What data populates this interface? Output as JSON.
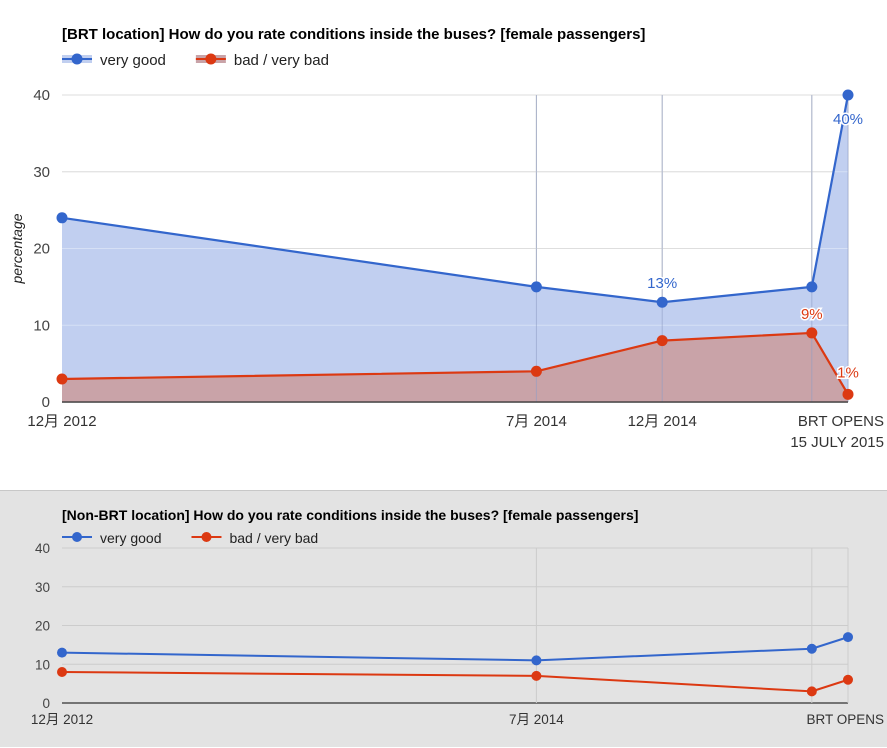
{
  "chart_data": [
    {
      "type": "area",
      "title": "[BRT location] How do you rate conditions inside the buses? [female passengers]",
      "xlabel": "",
      "ylabel": "percentage",
      "ylim": [
        0,
        40
      ],
      "yticks": [
        "0",
        "10",
        "20",
        "30",
        "40"
      ],
      "x": [
        "2012-12",
        "2014-07",
        "2014-12",
        "2015-06",
        "2015-07-15"
      ],
      "xtick_labels": [
        {
          "x": "2012-12",
          "lines": [
            "12月 2012"
          ]
        },
        {
          "x": "2014-07",
          "lines": [
            "7月 2014"
          ]
        },
        {
          "x": "2014-12",
          "lines": [
            "12月 2014"
          ]
        },
        {
          "x": "2015-07-15",
          "lines": [
            "BRT OPENS",
            "15 JULY 2015"
          ]
        }
      ],
      "series": [
        {
          "name": "very good",
          "color": "#3366cc",
          "fill": "#c1cff0",
          "values": [
            24,
            15,
            13,
            15,
            40
          ],
          "data_labels": [
            null,
            null,
            "13%",
            null,
            "40%"
          ]
        },
        {
          "name": "bad / very bad",
          "color": "#dc3912",
          "fill": "#c9a3a8",
          "values": [
            3,
            4,
            8,
            9,
            1
          ],
          "data_labels": [
            null,
            null,
            null,
            "9%",
            "1%"
          ]
        }
      ],
      "legend_position": "top-left",
      "grid": true
    },
    {
      "type": "line",
      "title": "[Non-BRT location] How do you rate conditions inside the buses? [female passengers]",
      "xlabel": "",
      "ylabel": "",
      "ylim": [
        0,
        40
      ],
      "yticks": [
        "0",
        "10",
        "20",
        "30",
        "40"
      ],
      "x": [
        "2012-12",
        "2014-07",
        "2015-06",
        "2015-07-15"
      ],
      "xtick_labels": [
        {
          "x": "2012-12",
          "lines": [
            "12月 2012"
          ]
        },
        {
          "x": "2014-07",
          "lines": [
            "7月 2014"
          ]
        },
        {
          "x": "2015-07-15",
          "lines": [
            "BRT OPENS"
          ]
        }
      ],
      "series": [
        {
          "name": "very good",
          "color": "#3366cc",
          "values": [
            13,
            11,
            14,
            17
          ]
        },
        {
          "name": "bad / very bad",
          "color": "#dc3912",
          "values": [
            8,
            7,
            3,
            6
          ]
        }
      ],
      "legend_position": "top-left",
      "grid": true
    }
  ]
}
